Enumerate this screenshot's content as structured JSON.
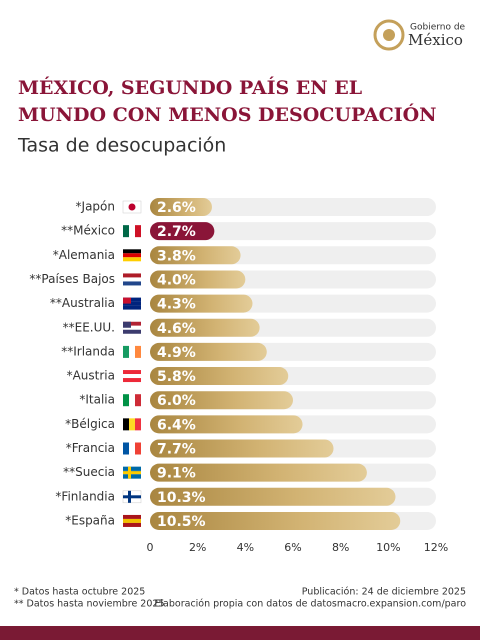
{
  "header": {
    "logo_line1": "Gobierno de",
    "logo_line2": "México"
  },
  "chart_data": {
    "type": "bar",
    "orientation": "horizontal",
    "title_lines": [
      "MÉXICO, SEGUNDO PAÍS EN EL",
      "MUNDO CON MENOS DESOCUPACIÓN"
    ],
    "subtitle": "Tasa de desocupación",
    "categories": [
      "*Japón",
      "**México",
      "*Alemania",
      "**Países Bajos",
      "**Australia",
      "**EE.UU.",
      "**Irlanda",
      "*Austria",
      "*Italia",
      "*Bélgica",
      "*Francia",
      "**Suecia",
      "*Finlandia",
      "*España"
    ],
    "values": [
      2.6,
      2.7,
      3.8,
      4.0,
      4.3,
      4.6,
      4.9,
      5.8,
      6.0,
      6.4,
      7.7,
      9.1,
      10.3,
      10.5
    ],
    "value_labels": [
      "2.6%",
      "2.7%",
      "3.8%",
      "4.0%",
      "4.3%",
      "4.6%",
      "4.9%",
      "5.8%",
      "6.0%",
      "6.4%",
      "7.7%",
      "9.1%",
      "10.3%",
      "10.5%"
    ],
    "colors": [
      "#c4a05a",
      "#8a1538",
      "#c4a05a",
      "#c4a05a",
      "#c4a05a",
      "#c4a05a",
      "#c4a05a",
      "#c4a05a",
      "#c4a05a",
      "#c4a05a",
      "#c4a05a",
      "#c4a05a",
      "#c4a05a",
      "#c4a05a"
    ],
    "xlim": [
      0,
      12
    ],
    "xticks": [
      0,
      {
        "value": 2,
        "label": "2%"
      },
      {
        "value": 4,
        "label": "4%"
      },
      {
        "value": 6,
        "label": "6%"
      },
      {
        "value": 8,
        "label": "8%"
      },
      {
        "value": 10,
        "label": "10%"
      },
      {
        "value": 12,
        "label": "12%"
      }
    ]
  },
  "footer": {
    "note1": "* Datos hasta octubre 2025",
    "note2": "** Datos hasta noviembre 2025",
    "publication": "Publicación: 24 de diciembre 2025",
    "source": "Elaboración propia con datos de datosmacro.expansion.com/paro"
  }
}
